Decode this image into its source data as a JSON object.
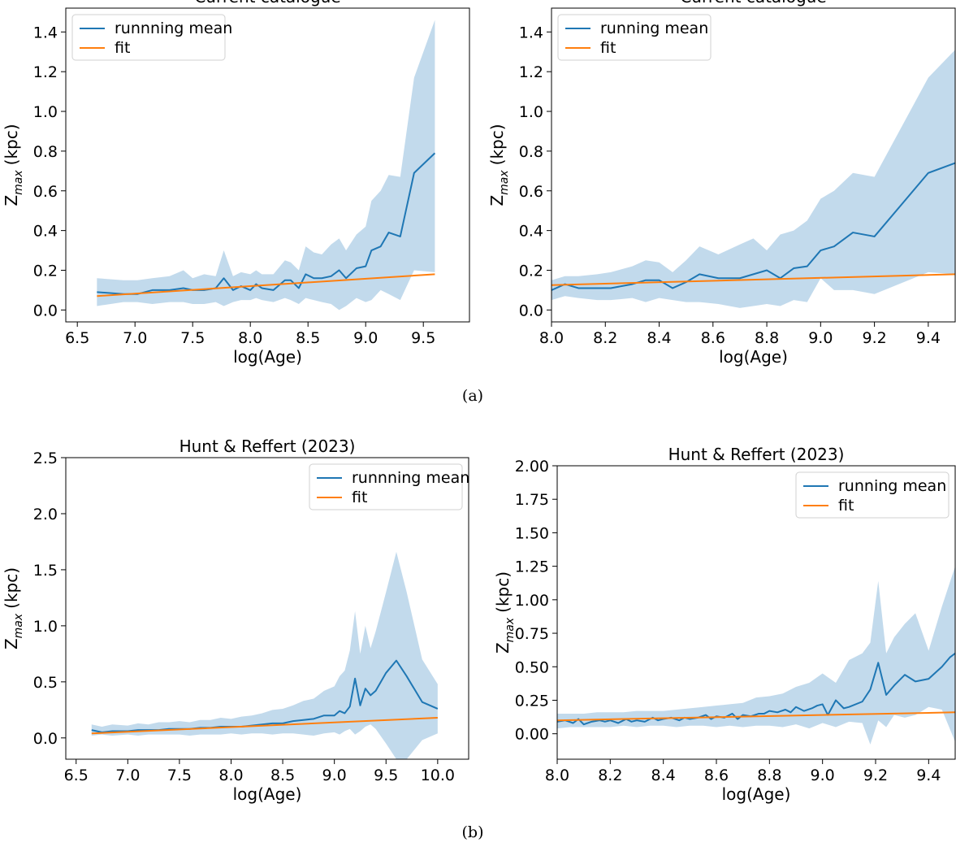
{
  "figure": {
    "captions": [
      "(a)",
      "(b)"
    ]
  },
  "chart_data": [
    {
      "type": "line",
      "title": "Current catalogue",
      "xlabel": "log(Age)",
      "ylabel_main": "Z",
      "ylabel_sub": "max",
      "ylabel_unit": "(kpc)",
      "xlim": [
        6.4,
        9.9
      ],
      "ylim": [
        -0.06,
        1.52
      ],
      "xticks": [
        6.5,
        7.0,
        7.5,
        8.0,
        8.5,
        9.0,
        9.5
      ],
      "xtick_labels": [
        "6.5",
        "7.0",
        "7.5",
        "8.0",
        "8.5",
        "9.0",
        "9.5"
      ],
      "yticks": [
        0.0,
        0.2,
        0.4,
        0.6,
        0.8,
        1.0,
        1.2,
        1.4
      ],
      "ytick_labels": [
        "0.0",
        "0.2",
        "0.4",
        "0.6",
        "0.8",
        "1.0",
        "1.2",
        "1.4"
      ],
      "legend_position": "top-left",
      "colors": {
        "mean": "#1f77b4",
        "fit": "#ff7f0e",
        "band": "#aecde6"
      },
      "series": [
        {
          "name": "runnning mean",
          "x": [
            6.67,
            6.9,
            7.02,
            7.15,
            7.3,
            7.42,
            7.5,
            7.6,
            7.7,
            7.77,
            7.85,
            7.92,
            8.0,
            8.05,
            8.1,
            8.2,
            8.3,
            8.35,
            8.42,
            8.48,
            8.55,
            8.62,
            8.7,
            8.77,
            8.83,
            8.92,
            9.0,
            9.05,
            9.13,
            9.2,
            9.3,
            9.42,
            9.6
          ],
          "y": [
            0.09,
            0.08,
            0.08,
            0.1,
            0.1,
            0.11,
            0.1,
            0.1,
            0.11,
            0.16,
            0.1,
            0.12,
            0.1,
            0.13,
            0.11,
            0.1,
            0.15,
            0.15,
            0.11,
            0.18,
            0.16,
            0.16,
            0.17,
            0.2,
            0.16,
            0.21,
            0.22,
            0.3,
            0.32,
            0.39,
            0.37,
            0.69,
            0.79
          ]
        },
        {
          "name": "fit",
          "x": [
            6.67,
            9.6
          ],
          "y": [
            0.07,
            0.18
          ]
        }
      ],
      "band": {
        "x": [
          6.67,
          6.9,
          7.02,
          7.15,
          7.3,
          7.42,
          7.5,
          7.6,
          7.7,
          7.77,
          7.85,
          7.92,
          8.0,
          8.05,
          8.1,
          8.2,
          8.3,
          8.35,
          8.42,
          8.48,
          8.55,
          8.62,
          8.7,
          8.77,
          8.83,
          8.92,
          9.0,
          9.05,
          9.13,
          9.2,
          9.3,
          9.42,
          9.6
        ],
        "lower": [
          0.02,
          0.04,
          0.04,
          0.03,
          0.04,
          0.04,
          0.03,
          0.03,
          0.04,
          0.02,
          0.04,
          0.05,
          0.05,
          0.06,
          0.05,
          0.04,
          0.06,
          0.05,
          0.03,
          0.06,
          0.05,
          0.04,
          0.03,
          0.0,
          0.02,
          0.06,
          0.04,
          0.05,
          0.1,
          0.08,
          0.05,
          0.2,
          0.19
        ],
        "upper": [
          0.16,
          0.15,
          0.15,
          0.16,
          0.17,
          0.2,
          0.16,
          0.18,
          0.17,
          0.3,
          0.17,
          0.19,
          0.18,
          0.2,
          0.18,
          0.18,
          0.25,
          0.24,
          0.2,
          0.32,
          0.29,
          0.28,
          0.33,
          0.36,
          0.3,
          0.38,
          0.42,
          0.55,
          0.6,
          0.68,
          0.67,
          1.17,
          1.46
        ]
      }
    },
    {
      "type": "line",
      "title": "Current catalogue",
      "xlabel": "log(Age)",
      "ylabel_main": "Z",
      "ylabel_sub": "max",
      "ylabel_unit": "(kpc)",
      "xlim": [
        8.0,
        9.5
      ],
      "ylim": [
        -0.06,
        1.52
      ],
      "xticks": [
        8.0,
        8.2,
        8.4,
        8.6,
        8.8,
        9.0,
        9.2,
        9.4
      ],
      "xtick_labels": [
        "8.0",
        "8.2",
        "8.4",
        "8.6",
        "8.8",
        "9.0",
        "9.2",
        "9.4"
      ],
      "yticks": [
        0.0,
        0.2,
        0.4,
        0.6,
        0.8,
        1.0,
        1.2,
        1.4
      ],
      "ytick_labels": [
        "0.0",
        "0.2",
        "0.4",
        "0.6",
        "0.8",
        "1.0",
        "1.2",
        "1.4"
      ],
      "legend_position": "top-left",
      "colors": {
        "mean": "#1f77b4",
        "fit": "#ff7f0e",
        "band": "#aecde6"
      },
      "series": [
        {
          "name": "running mean",
          "x": [
            8.0,
            8.05,
            8.1,
            8.17,
            8.22,
            8.3,
            8.35,
            8.4,
            8.45,
            8.5,
            8.55,
            8.62,
            8.7,
            8.75,
            8.8,
            8.85,
            8.9,
            8.95,
            9.0,
            9.05,
            9.12,
            9.2,
            9.4,
            9.5
          ],
          "y": [
            0.1,
            0.13,
            0.11,
            0.11,
            0.11,
            0.13,
            0.15,
            0.15,
            0.11,
            0.14,
            0.18,
            0.16,
            0.16,
            0.18,
            0.2,
            0.16,
            0.21,
            0.22,
            0.3,
            0.32,
            0.39,
            0.37,
            0.69,
            0.74
          ]
        },
        {
          "name": "fit",
          "x": [
            8.0,
            9.5
          ],
          "y": [
            0.125,
            0.18
          ]
        }
      ],
      "band": {
        "x": [
          8.0,
          8.05,
          8.1,
          8.17,
          8.22,
          8.3,
          8.35,
          8.4,
          8.45,
          8.5,
          8.55,
          8.62,
          8.7,
          8.75,
          8.8,
          8.85,
          8.9,
          8.95,
          9.0,
          9.05,
          9.12,
          9.2,
          9.4,
          9.5
        ],
        "lower": [
          0.05,
          0.07,
          0.06,
          0.05,
          0.05,
          0.06,
          0.04,
          0.06,
          0.05,
          0.04,
          0.04,
          0.03,
          0.01,
          0.02,
          0.03,
          0.02,
          0.05,
          0.04,
          0.16,
          0.1,
          0.1,
          0.08,
          0.19,
          0.18
        ],
        "upper": [
          0.15,
          0.17,
          0.17,
          0.18,
          0.19,
          0.22,
          0.25,
          0.24,
          0.19,
          0.25,
          0.32,
          0.28,
          0.33,
          0.36,
          0.3,
          0.38,
          0.4,
          0.45,
          0.56,
          0.6,
          0.69,
          0.67,
          1.17,
          1.31
        ]
      }
    },
    {
      "type": "line",
      "title": "Hunt & Reffert (2023)",
      "xlabel": "log(Age)",
      "ylabel_main": "Z",
      "ylabel_sub": "max",
      "ylabel_unit": "(kpc)",
      "xlim": [
        6.4,
        10.3
      ],
      "ylim": [
        -0.19,
        2.5
      ],
      "xticks": [
        6.5,
        7.0,
        7.5,
        8.0,
        8.5,
        9.0,
        9.5,
        10.0
      ],
      "xtick_labels": [
        "6.5",
        "7.0",
        "7.5",
        "8.0",
        "8.5",
        "9.0",
        "9.5",
        "10.0"
      ],
      "yticks": [
        0.0,
        0.5,
        1.0,
        1.5,
        2.0,
        2.5
      ],
      "ytick_labels": [
        "0.0",
        "0.5",
        "1.0",
        "1.5",
        "2.0",
        "2.5"
      ],
      "legend_position": "top-right",
      "colors": {
        "mean": "#1f77b4",
        "fit": "#ff7f0e",
        "band": "#aecde6"
      },
      "series": [
        {
          "name": "runnning mean",
          "x": [
            6.65,
            6.75,
            6.85,
            7.0,
            7.1,
            7.2,
            7.3,
            7.4,
            7.5,
            7.6,
            7.7,
            7.8,
            7.9,
            8.0,
            8.1,
            8.2,
            8.3,
            8.4,
            8.5,
            8.6,
            8.7,
            8.8,
            8.9,
            9.0,
            9.05,
            9.1,
            9.15,
            9.2,
            9.25,
            9.3,
            9.35,
            9.4,
            9.5,
            9.6,
            9.7,
            9.85,
            10.0
          ],
          "y": [
            0.07,
            0.05,
            0.06,
            0.06,
            0.07,
            0.07,
            0.07,
            0.08,
            0.08,
            0.08,
            0.09,
            0.09,
            0.1,
            0.1,
            0.1,
            0.11,
            0.12,
            0.13,
            0.13,
            0.15,
            0.16,
            0.17,
            0.2,
            0.2,
            0.24,
            0.22,
            0.28,
            0.53,
            0.29,
            0.44,
            0.38,
            0.42,
            0.58,
            0.69,
            0.55,
            0.32,
            0.26
          ]
        },
        {
          "name": "fit",
          "x": [
            6.65,
            10.0
          ],
          "y": [
            0.04,
            0.18
          ]
        }
      ],
      "band": {
        "x": [
          6.65,
          6.75,
          6.85,
          7.0,
          7.1,
          7.2,
          7.3,
          7.4,
          7.5,
          7.6,
          7.7,
          7.8,
          7.9,
          8.0,
          8.1,
          8.2,
          8.3,
          8.4,
          8.5,
          8.6,
          8.7,
          8.8,
          8.9,
          9.0,
          9.05,
          9.1,
          9.15,
          9.2,
          9.25,
          9.3,
          9.35,
          9.4,
          9.5,
          9.6,
          9.7,
          9.85,
          10.0
        ],
        "lower": [
          0.02,
          0.03,
          0.02,
          0.03,
          0.02,
          0.03,
          0.03,
          0.03,
          0.03,
          0.02,
          0.03,
          0.03,
          0.03,
          0.04,
          0.03,
          0.04,
          0.04,
          0.03,
          0.04,
          0.04,
          0.03,
          0.02,
          0.04,
          0.05,
          0.03,
          0.06,
          0.08,
          0.03,
          0.06,
          0.1,
          0.12,
          0.08,
          -0.05,
          -0.19,
          -0.19,
          -0.02,
          0.04
        ],
        "upper": [
          0.12,
          0.1,
          0.12,
          0.11,
          0.13,
          0.12,
          0.14,
          0.14,
          0.15,
          0.14,
          0.16,
          0.16,
          0.18,
          0.17,
          0.19,
          0.2,
          0.22,
          0.25,
          0.26,
          0.29,
          0.33,
          0.35,
          0.42,
          0.46,
          0.55,
          0.6,
          0.78,
          1.13,
          0.75,
          1.0,
          0.8,
          0.95,
          1.3,
          1.66,
          1.3,
          0.7,
          0.48
        ]
      }
    },
    {
      "type": "line",
      "title": "Hunt & Reffert (2023)",
      "xlabel": "log(Age)",
      "ylabel_main": "Z",
      "ylabel_sub": "max",
      "ylabel_unit": "(kpc)",
      "xlim": [
        8.0,
        9.5
      ],
      "ylim": [
        -0.19,
        2.0
      ],
      "xticks": [
        8.0,
        8.2,
        8.4,
        8.6,
        8.8,
        9.0,
        9.2,
        9.4
      ],
      "xtick_labels": [
        "8.0",
        "8.2",
        "8.4",
        "8.6",
        "8.8",
        "9.0",
        "9.2",
        "9.4"
      ],
      "yticks": [
        0.0,
        0.25,
        0.5,
        0.75,
        1.0,
        1.25,
        1.5,
        1.75,
        2.0
      ],
      "ytick_labels": [
        "0.00",
        "0.25",
        "0.50",
        "0.75",
        "1.00",
        "1.25",
        "1.50",
        "1.75",
        "2.00"
      ],
      "legend_position": "top-right",
      "colors": {
        "mean": "#1f77b4",
        "fit": "#ff7f0e",
        "band": "#aecde6"
      },
      "series": [
        {
          "name": "running mean",
          "x": [
            8.0,
            8.03,
            8.06,
            8.08,
            8.1,
            8.13,
            8.16,
            8.18,
            8.2,
            8.23,
            8.26,
            8.28,
            8.3,
            8.33,
            8.36,
            8.38,
            8.4,
            8.43,
            8.46,
            8.48,
            8.5,
            8.53,
            8.56,
            8.58,
            8.6,
            8.63,
            8.66,
            8.68,
            8.7,
            8.73,
            8.76,
            8.78,
            8.8,
            8.83,
            8.86,
            8.88,
            8.9,
            8.93,
            8.96,
            8.98,
            9.0,
            9.02,
            9.05,
            9.08,
            9.1,
            9.15,
            9.18,
            9.21,
            9.24,
            9.27,
            9.31,
            9.35,
            9.4,
            9.45,
            9.48,
            9.5
          ],
          "y": [
            0.09,
            0.1,
            0.08,
            0.11,
            0.07,
            0.09,
            0.1,
            0.09,
            0.1,
            0.08,
            0.11,
            0.09,
            0.1,
            0.09,
            0.12,
            0.1,
            0.11,
            0.12,
            0.1,
            0.12,
            0.11,
            0.12,
            0.14,
            0.11,
            0.13,
            0.12,
            0.15,
            0.11,
            0.14,
            0.13,
            0.15,
            0.15,
            0.17,
            0.16,
            0.18,
            0.16,
            0.2,
            0.17,
            0.19,
            0.21,
            0.22,
            0.14,
            0.25,
            0.19,
            0.2,
            0.24,
            0.33,
            0.53,
            0.29,
            0.36,
            0.44,
            0.39,
            0.41,
            0.5,
            0.57,
            0.6
          ]
        },
        {
          "name": "fit",
          "x": [
            8.0,
            9.5
          ],
          "y": [
            0.1,
            0.16
          ]
        }
      ],
      "band": {
        "x": [
          8.0,
          8.05,
          8.1,
          8.15,
          8.2,
          8.25,
          8.3,
          8.35,
          8.4,
          8.45,
          8.5,
          8.55,
          8.6,
          8.65,
          8.7,
          8.75,
          8.8,
          8.85,
          8.9,
          8.95,
          9.0,
          9.05,
          9.1,
          9.15,
          9.18,
          9.21,
          9.24,
          9.27,
          9.31,
          9.35,
          9.4,
          9.45,
          9.5
        ],
        "lower": [
          0.04,
          0.05,
          0.05,
          0.05,
          0.05,
          0.06,
          0.05,
          0.06,
          0.06,
          0.05,
          0.06,
          0.06,
          0.05,
          0.06,
          0.05,
          0.06,
          0.06,
          0.05,
          0.07,
          0.04,
          0.08,
          0.05,
          0.09,
          0.08,
          -0.08,
          0.1,
          0.05,
          0.14,
          0.12,
          0.14,
          0.2,
          0.18,
          -0.06
        ],
        "upper": [
          0.15,
          0.15,
          0.15,
          0.16,
          0.16,
          0.16,
          0.17,
          0.17,
          0.17,
          0.18,
          0.19,
          0.2,
          0.21,
          0.22,
          0.23,
          0.27,
          0.28,
          0.3,
          0.35,
          0.38,
          0.45,
          0.38,
          0.55,
          0.6,
          0.68,
          1.14,
          0.6,
          0.72,
          0.82,
          0.9,
          0.62,
          0.95,
          1.25
        ]
      }
    }
  ]
}
